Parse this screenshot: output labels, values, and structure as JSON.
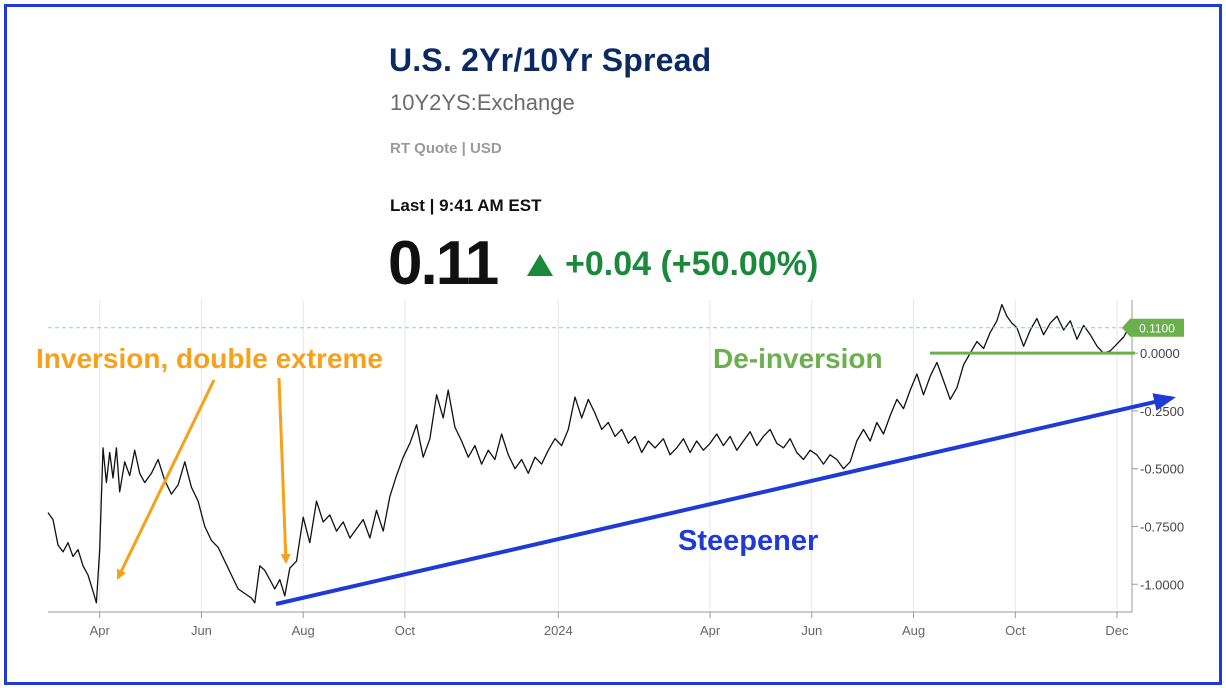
{
  "header": {
    "title": "U.S. 2Yr/10Yr Spread",
    "symbol": "10Y2YS:Exchange",
    "quote_info": "RT Quote | USD",
    "last_label": "Last | 9:41 AM EST",
    "price": "0.11",
    "change": "+0.04 (+50.00%)",
    "change_color": "#1a8a3a",
    "change_icon": "up-triangle-icon"
  },
  "annotations": {
    "inversion": "Inversion, double extreme",
    "deinversion": "De-inversion",
    "steepener": "Steepener",
    "current_value_tag": "0.1100"
  },
  "colors": {
    "orange": "#f7a11a",
    "green": "#6ab04c",
    "blue": "#1f3ad6",
    "line": "#111111",
    "frame": "#1f3ad6"
  },
  "chart_data": {
    "type": "line",
    "xlabel": "",
    "ylabel": "",
    "x_tick_labels": [
      "Apr",
      "Jun",
      "Aug",
      "Oct",
      "2024",
      "Apr",
      "Jun",
      "Aug",
      "Oct",
      "Dec"
    ],
    "y_tick_labels": [
      "0.0000",
      "-0.2500",
      "-0.5000",
      "-0.7500",
      "-1.0000"
    ],
    "y_ticks": [
      0,
      -0.25,
      -0.5,
      -0.75,
      -1.0
    ],
    "ylim": [
      -1.12,
      0.23
    ],
    "x_range": [
      "2023-03-01",
      "2024-12-10"
    ],
    "y_axis_side": "right",
    "grid": true,
    "series": [
      {
        "values": [
          [
            "2023-03-01",
            -0.69
          ],
          [
            "2023-03-04",
            -0.72
          ],
          [
            "2023-03-07",
            -0.83
          ],
          [
            "2023-03-10",
            -0.86
          ],
          [
            "2023-03-13",
            -0.82
          ],
          [
            "2023-03-16",
            -0.88
          ],
          [
            "2023-03-19",
            -0.85
          ],
          [
            "2023-03-22",
            -0.92
          ],
          [
            "2023-03-25",
            -0.96
          ],
          [
            "2023-03-28",
            -1.03
          ],
          [
            "2023-03-30",
            -1.08
          ],
          [
            "2023-04-01",
            -0.85
          ],
          [
            "2023-04-03",
            -0.41
          ],
          [
            "2023-04-05",
            -0.56
          ],
          [
            "2023-04-07",
            -0.43
          ],
          [
            "2023-04-09",
            -0.54
          ],
          [
            "2023-04-11",
            -0.41
          ],
          [
            "2023-04-13",
            -0.6
          ],
          [
            "2023-04-16",
            -0.47
          ],
          [
            "2023-04-19",
            -0.53
          ],
          [
            "2023-04-22",
            -0.42
          ],
          [
            "2023-04-25",
            -0.52
          ],
          [
            "2023-04-28",
            -0.56
          ],
          [
            "2023-05-02",
            -0.52
          ],
          [
            "2023-05-06",
            -0.46
          ],
          [
            "2023-05-10",
            -0.55
          ],
          [
            "2023-05-14",
            -0.61
          ],
          [
            "2023-05-18",
            -0.57
          ],
          [
            "2023-05-22",
            -0.47
          ],
          [
            "2023-05-26",
            -0.58
          ],
          [
            "2023-05-30",
            -0.64
          ],
          [
            "2023-06-03",
            -0.75
          ],
          [
            "2023-06-07",
            -0.81
          ],
          [
            "2023-06-11",
            -0.84
          ],
          [
            "2023-06-15",
            -0.9
          ],
          [
            "2023-06-19",
            -0.96
          ],
          [
            "2023-06-23",
            -1.02
          ],
          [
            "2023-06-27",
            -1.04
          ],
          [
            "2023-07-01",
            -1.06
          ],
          [
            "2023-07-03",
            -1.08
          ],
          [
            "2023-07-06",
            -0.92
          ],
          [
            "2023-07-09",
            -0.94
          ],
          [
            "2023-07-12",
            -0.98
          ],
          [
            "2023-07-15",
            -1.02
          ],
          [
            "2023-07-18",
            -0.98
          ],
          [
            "2023-07-21",
            -1.05
          ],
          [
            "2023-07-24",
            -0.93
          ],
          [
            "2023-07-28",
            -0.9
          ],
          [
            "2023-08-01",
            -0.71
          ],
          [
            "2023-08-05",
            -0.82
          ],
          [
            "2023-08-09",
            -0.64
          ],
          [
            "2023-08-13",
            -0.73
          ],
          [
            "2023-08-17",
            -0.7
          ],
          [
            "2023-08-21",
            -0.77
          ],
          [
            "2023-08-25",
            -0.73
          ],
          [
            "2023-08-29",
            -0.8
          ],
          [
            "2023-09-02",
            -0.76
          ],
          [
            "2023-09-06",
            -0.72
          ],
          [
            "2023-09-10",
            -0.8
          ],
          [
            "2023-09-14",
            -0.68
          ],
          [
            "2023-09-18",
            -0.77
          ],
          [
            "2023-09-22",
            -0.62
          ],
          [
            "2023-09-26",
            -0.53
          ],
          [
            "2023-09-30",
            -0.45
          ],
          [
            "2023-10-04",
            -0.39
          ],
          [
            "2023-10-08",
            -0.31
          ],
          [
            "2023-10-12",
            -0.45
          ],
          [
            "2023-10-16",
            -0.37
          ],
          [
            "2023-10-20",
            -0.18
          ],
          [
            "2023-10-24",
            -0.28
          ],
          [
            "2023-10-27",
            -0.16
          ],
          [
            "2023-10-31",
            -0.32
          ],
          [
            "2023-11-04",
            -0.38
          ],
          [
            "2023-11-08",
            -0.45
          ],
          [
            "2023-11-12",
            -0.4
          ],
          [
            "2023-11-16",
            -0.48
          ],
          [
            "2023-11-20",
            -0.42
          ],
          [
            "2023-11-24",
            -0.46
          ],
          [
            "2023-11-28",
            -0.35
          ],
          [
            "2023-12-02",
            -0.44
          ],
          [
            "2023-12-06",
            -0.5
          ],
          [
            "2023-12-10",
            -0.46
          ],
          [
            "2023-12-14",
            -0.52
          ],
          [
            "2023-12-18",
            -0.45
          ],
          [
            "2023-12-22",
            -0.48
          ],
          [
            "2023-12-26",
            -0.42
          ],
          [
            "2023-12-30",
            -0.37
          ],
          [
            "2024-01-03",
            -0.4
          ],
          [
            "2024-01-07",
            -0.33
          ],
          [
            "2024-01-11",
            -0.19
          ],
          [
            "2024-01-15",
            -0.28
          ],
          [
            "2024-01-19",
            -0.2
          ],
          [
            "2024-01-23",
            -0.26
          ],
          [
            "2024-01-27",
            -0.33
          ],
          [
            "2024-01-31",
            -0.3
          ],
          [
            "2024-02-04",
            -0.36
          ],
          [
            "2024-02-08",
            -0.33
          ],
          [
            "2024-02-12",
            -0.39
          ],
          [
            "2024-02-16",
            -0.36
          ],
          [
            "2024-02-20",
            -0.43
          ],
          [
            "2024-02-24",
            -0.38
          ],
          [
            "2024-02-28",
            -0.41
          ],
          [
            "2024-03-04",
            -0.37
          ],
          [
            "2024-03-08",
            -0.44
          ],
          [
            "2024-03-12",
            -0.41
          ],
          [
            "2024-03-16",
            -0.37
          ],
          [
            "2024-03-20",
            -0.43
          ],
          [
            "2024-03-24",
            -0.38
          ],
          [
            "2024-03-28",
            -0.42
          ],
          [
            "2024-04-01",
            -0.39
          ],
          [
            "2024-04-05",
            -0.35
          ],
          [
            "2024-04-09",
            -0.4
          ],
          [
            "2024-04-13",
            -0.36
          ],
          [
            "2024-04-17",
            -0.42
          ],
          [
            "2024-04-21",
            -0.38
          ],
          [
            "2024-04-25",
            -0.34
          ],
          [
            "2024-04-29",
            -0.4
          ],
          [
            "2024-05-03",
            -0.36
          ],
          [
            "2024-05-07",
            -0.33
          ],
          [
            "2024-05-11",
            -0.39
          ],
          [
            "2024-05-15",
            -0.41
          ],
          [
            "2024-05-19",
            -0.37
          ],
          [
            "2024-05-23",
            -0.43
          ],
          [
            "2024-05-27",
            -0.46
          ],
          [
            "2024-05-31",
            -0.42
          ],
          [
            "2024-06-04",
            -0.44
          ],
          [
            "2024-06-08",
            -0.48
          ],
          [
            "2024-06-12",
            -0.44
          ],
          [
            "2024-06-16",
            -0.46
          ],
          [
            "2024-06-20",
            -0.5
          ],
          [
            "2024-06-24",
            -0.47
          ],
          [
            "2024-06-28",
            -0.38
          ],
          [
            "2024-07-02",
            -0.33
          ],
          [
            "2024-07-06",
            -0.38
          ],
          [
            "2024-07-10",
            -0.3
          ],
          [
            "2024-07-14",
            -0.35
          ],
          [
            "2024-07-18",
            -0.27
          ],
          [
            "2024-07-22",
            -0.2
          ],
          [
            "2024-07-26",
            -0.24
          ],
          [
            "2024-07-30",
            -0.16
          ],
          [
            "2024-08-03",
            -0.09
          ],
          [
            "2024-08-07",
            -0.18
          ],
          [
            "2024-08-11",
            -0.1
          ],
          [
            "2024-08-15",
            -0.04
          ],
          [
            "2024-08-19",
            -0.12
          ],
          [
            "2024-08-23",
            -0.2
          ],
          [
            "2024-08-27",
            -0.15
          ],
          [
            "2024-08-31",
            -0.05
          ],
          [
            "2024-09-04",
            0.0
          ],
          [
            "2024-09-08",
            0.05
          ],
          [
            "2024-09-12",
            0.02
          ],
          [
            "2024-09-16",
            0.09
          ],
          [
            "2024-09-20",
            0.14
          ],
          [
            "2024-09-23",
            0.21
          ],
          [
            "2024-09-26",
            0.16
          ],
          [
            "2024-09-29",
            0.13
          ],
          [
            "2024-10-02",
            0.11
          ],
          [
            "2024-10-06",
            0.03
          ],
          [
            "2024-10-10",
            0.1
          ],
          [
            "2024-10-14",
            0.15
          ],
          [
            "2024-10-18",
            0.08
          ],
          [
            "2024-10-22",
            0.13
          ],
          [
            "2024-10-26",
            0.16
          ],
          [
            "2024-10-30",
            0.1
          ],
          [
            "2024-11-03",
            0.14
          ],
          [
            "2024-11-07",
            0.06
          ],
          [
            "2024-11-11",
            0.12
          ],
          [
            "2024-11-15",
            0.08
          ],
          [
            "2024-11-19",
            0.03
          ],
          [
            "2024-11-23",
            0.0
          ],
          [
            "2024-11-27",
            0.01
          ],
          [
            "2024-12-01",
            0.04
          ],
          [
            "2024-12-05",
            0.07
          ],
          [
            "2024-12-08",
            0.11
          ]
        ]
      }
    ]
  }
}
